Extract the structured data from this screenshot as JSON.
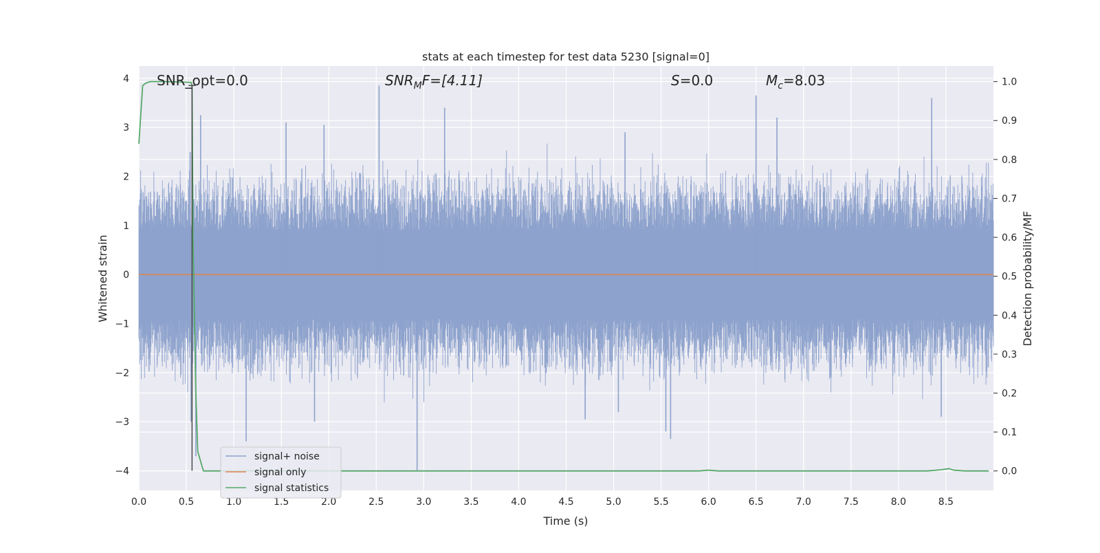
{
  "chart_data": {
    "type": "line",
    "title": "stats at each timestep for test data 5230 [signal=0]",
    "xlabel": "Time (s)",
    "ylabel_left": "Whitened strain",
    "ylabel_right": "Detection probability/MF",
    "xlim": [
      0.0,
      9.0
    ],
    "ylim_left": [
      -4.4,
      4.25
    ],
    "ylim_right": [
      -0.05,
      1.04
    ],
    "x_ticks": [
      "0.0",
      "0.5",
      "1.0",
      "1.5",
      "2.0",
      "2.5",
      "3.0",
      "3.5",
      "4.0",
      "4.5",
      "5.0",
      "5.5",
      "6.0",
      "6.5",
      "7.0",
      "7.5",
      "8.0",
      "8.5"
    ],
    "x_tick_values": [
      0.0,
      0.5,
      1.0,
      1.5,
      2.0,
      2.5,
      3.0,
      3.5,
      4.0,
      4.5,
      5.0,
      5.5,
      6.0,
      6.5,
      7.0,
      7.5,
      8.0,
      8.5
    ],
    "y_ticks_left": [
      "4",
      "3",
      "2",
      "1",
      "0",
      "−1",
      "−2",
      "−3",
      "−4"
    ],
    "y_tick_values_left": [
      4,
      3,
      2,
      1,
      0,
      -1,
      -2,
      -3,
      -4
    ],
    "y_ticks_right": [
      "1.0",
      "0.9",
      "0.8",
      "0.7",
      "0.6",
      "0.5",
      "0.4",
      "0.3",
      "0.2",
      "0.1",
      "0.0"
    ],
    "y_tick_values_right": [
      1.0,
      0.9,
      0.8,
      0.7,
      0.6,
      0.5,
      0.4,
      0.3,
      0.2,
      0.1,
      0.0
    ],
    "grid": true,
    "legend_position": "lower-left",
    "annotations": {
      "snr_opt": "SNR_opt=0.0",
      "snr_mf_base": "SNR",
      "snr_mf_sub": "M",
      "snr_mf_rest": "F=[4.11]",
      "s_base": "S",
      "s_rest": "=0.0",
      "mc_base": "M",
      "mc_sub": "c",
      "mc_rest": "=8.03"
    },
    "series": [
      {
        "name": "signal+ noise",
        "color": "#8da2cc",
        "note_values": "dense noise between approx -2.7 and +2.6 with spikes",
        "spikes": [
          [
            0.54,
            2.5
          ],
          [
            0.55,
            -3.0
          ],
          [
            0.6,
            -3.7
          ],
          [
            0.65,
            3.25
          ],
          [
            1.13,
            -3.4
          ],
          [
            1.55,
            3.1
          ],
          [
            1.85,
            -3.0
          ],
          [
            1.95,
            3.05
          ],
          [
            2.53,
            3.85
          ],
          [
            2.93,
            -4.0
          ],
          [
            3.22,
            3.4
          ],
          [
            4.7,
            -2.95
          ],
          [
            5.05,
            -2.8
          ],
          [
            5.12,
            2.9
          ],
          [
            5.55,
            -3.2
          ],
          [
            5.6,
            -3.35
          ],
          [
            6.5,
            3.65
          ],
          [
            6.72,
            3.2
          ],
          [
            8.35,
            3.6
          ],
          [
            8.45,
            -2.9
          ]
        ]
      },
      {
        "name": "signal only",
        "color": "#dd8452",
        "x": [
          0.0,
          9.0
        ],
        "y": [
          0.0,
          0.0
        ]
      },
      {
        "name": "signal statistics",
        "color": "#55a868",
        "axis": "right",
        "x": [
          0.0,
          0.04,
          0.08,
          0.12,
          0.3,
          0.55,
          0.56,
          0.57,
          0.6,
          0.62,
          0.68,
          1.0,
          2.0,
          4.0,
          5.9,
          6.0,
          6.1,
          8.0,
          8.3,
          8.45,
          8.53,
          8.58,
          8.7,
          8.95
        ],
        "y": [
          0.84,
          0.99,
          0.997,
          1.0,
          1.0,
          0.998,
          0.99,
          0.6,
          0.2,
          0.05,
          0.0,
          0.0,
          0.0,
          0.0,
          0.0,
          0.002,
          0.0,
          0.0,
          0.0,
          0.003,
          0.006,
          0.002,
          0.0,
          0.0
        ]
      }
    ]
  }
}
